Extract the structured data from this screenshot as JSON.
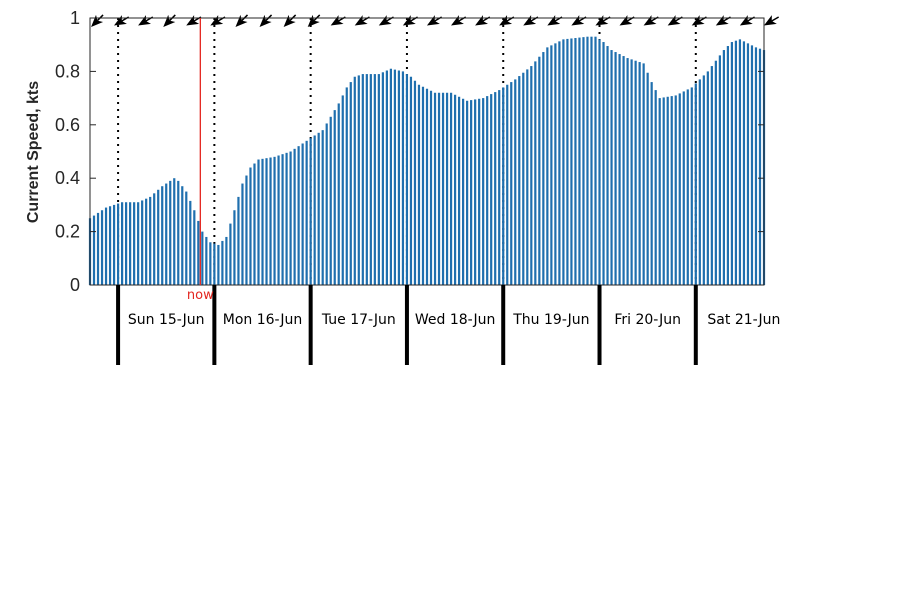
{
  "chart_data": {
    "type": "bar",
    "ylabel": "Current Speed, kts",
    "ylim": [
      0,
      1
    ],
    "yticks": [
      "0",
      "0.2",
      "0.4",
      "0.6",
      "0.8",
      "1"
    ],
    "bar_color": "#1f6fae",
    "now_marker": {
      "label": "now",
      "color": "#e3261f",
      "hour": 27.5
    },
    "days": [
      "Sun 15-Jun",
      "Mon 16-Jun",
      "Tue 17-Jun",
      "Wed 18-Jun",
      "Thu 19-Jun",
      "Fri 20-Jun",
      "Sat 21-Jun"
    ],
    "day_boundaries_hours": [
      7,
      31,
      55,
      79,
      103,
      127,
      151
    ],
    "bar_step_hours": 1,
    "speed_profile_kts": [
      [
        0,
        0.25
      ],
      [
        2,
        0.27
      ],
      [
        4,
        0.29
      ],
      [
        6,
        0.3
      ],
      [
        8,
        0.31
      ],
      [
        12,
        0.31
      ],
      [
        15,
        0.33
      ],
      [
        18,
        0.37
      ],
      [
        20,
        0.39
      ],
      [
        21,
        0.4
      ],
      [
        22,
        0.39
      ],
      [
        24,
        0.35
      ],
      [
        26,
        0.28
      ],
      [
        28,
        0.2
      ],
      [
        30,
        0.16
      ],
      [
        32,
        0.15
      ],
      [
        34,
        0.18
      ],
      [
        36,
        0.28
      ],
      [
        38,
        0.38
      ],
      [
        40,
        0.44
      ],
      [
        42,
        0.47
      ],
      [
        46,
        0.48
      ],
      [
        50,
        0.5
      ],
      [
        54,
        0.54
      ],
      [
        58,
        0.58
      ],
      [
        62,
        0.68
      ],
      [
        64,
        0.74
      ],
      [
        66,
        0.78
      ],
      [
        68,
        0.79
      ],
      [
        72,
        0.79
      ],
      [
        75,
        0.81
      ],
      [
        78,
        0.8
      ],
      [
        80,
        0.78
      ],
      [
        82,
        0.75
      ],
      [
        86,
        0.72
      ],
      [
        90,
        0.72
      ],
      [
        94,
        0.69
      ],
      [
        98,
        0.7
      ],
      [
        102,
        0.73
      ],
      [
        106,
        0.77
      ],
      [
        110,
        0.82
      ],
      [
        114,
        0.89
      ],
      [
        118,
        0.92
      ],
      [
        124,
        0.93
      ],
      [
        126,
        0.93
      ],
      [
        128,
        0.91
      ],
      [
        130,
        0.88
      ],
      [
        134,
        0.85
      ],
      [
        138,
        0.83
      ],
      [
        140,
        0.76
      ],
      [
        142,
        0.7
      ],
      [
        146,
        0.71
      ],
      [
        150,
        0.74
      ],
      [
        154,
        0.8
      ],
      [
        158,
        0.88
      ],
      [
        160,
        0.91
      ],
      [
        162,
        0.92
      ],
      [
        166,
        0.89
      ],
      [
        168,
        0.88
      ]
    ],
    "direction_arrows": {
      "every_hours": 6,
      "angles_deg": [
        -45,
        -30,
        -30,
        -45,
        -30,
        -30,
        -45,
        -45,
        -45,
        -45,
        -30,
        -30,
        -30,
        -30,
        -30,
        -30,
        -30,
        -30,
        -30,
        -30,
        -30,
        -30,
        -30,
        -30,
        -30,
        -30,
        -30,
        -30,
        -30
      ]
    }
  }
}
